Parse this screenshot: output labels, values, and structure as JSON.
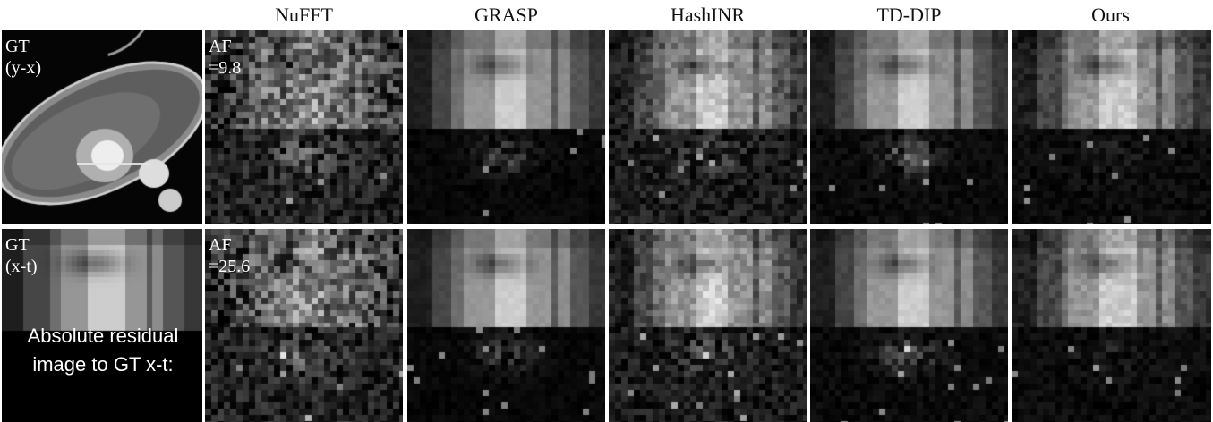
{
  "columns": [
    "NuFFT",
    "GRASP",
    "HashINR",
    "TD-DIP",
    "Ours"
  ],
  "ground_truth": {
    "top_label": "GT\n(y-x)",
    "bottom_label": "GT\n(x-t)",
    "residual_caption": "Absolute residual image to GT x-t:"
  },
  "rows": [
    {
      "af_label": "AF\n=9.8"
    },
    {
      "af_label": "AF\n=25.6"
    }
  ]
}
